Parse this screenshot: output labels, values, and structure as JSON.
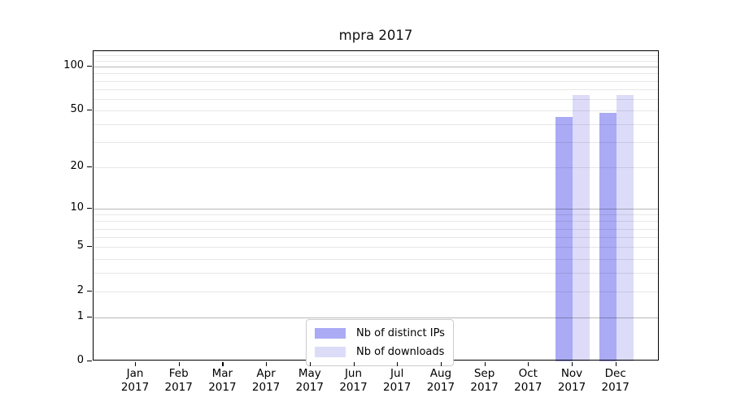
{
  "chart_data": {
    "type": "bar",
    "title": "mpra 2017",
    "categories": [
      {
        "month": "Jan",
        "year": "2017"
      },
      {
        "month": "Feb",
        "year": "2017"
      },
      {
        "month": "Mar",
        "year": "2017"
      },
      {
        "month": "Apr",
        "year": "2017"
      },
      {
        "month": "May",
        "year": "2017"
      },
      {
        "month": "Jun",
        "year": "2017"
      },
      {
        "month": "Jul",
        "year": "2017"
      },
      {
        "month": "Aug",
        "year": "2017"
      },
      {
        "month": "Sep",
        "year": "2017"
      },
      {
        "month": "Oct",
        "year": "2017"
      },
      {
        "month": "Nov",
        "year": "2017"
      },
      {
        "month": "Dec",
        "year": "2017"
      }
    ],
    "series": [
      {
        "name": "Nb of distinct IPs",
        "color": "#aaaaf5",
        "values": [
          0,
          0,
          0,
          0,
          0,
          0,
          0,
          0,
          0,
          0,
          45,
          48
        ]
      },
      {
        "name": "Nb of downloads",
        "color": "#dcdcf9",
        "values": [
          0,
          0,
          0,
          0,
          0,
          0,
          0,
          0,
          0,
          0,
          64,
          64
        ]
      }
    ],
    "yscale": "log1p",
    "ylim": [
      0,
      128
    ],
    "yticks": [
      0,
      1,
      2,
      5,
      10,
      20,
      50,
      100
    ],
    "major_gridlines": [
      1,
      10,
      100
    ],
    "minor_gridlines": [
      2,
      3,
      4,
      5,
      6,
      7,
      8,
      9,
      20,
      30,
      40,
      50,
      60,
      70,
      80,
      90,
      110,
      120
    ],
    "grid": "horizontal",
    "legend_position": "lower center",
    "colors": {
      "major_grid": "#b8b8b8",
      "minor_grid": "#e7e7e7",
      "spine": "#000000",
      "text": "#000000",
      "legend_border": "#cccccc",
      "background": "#ffffff"
    }
  }
}
